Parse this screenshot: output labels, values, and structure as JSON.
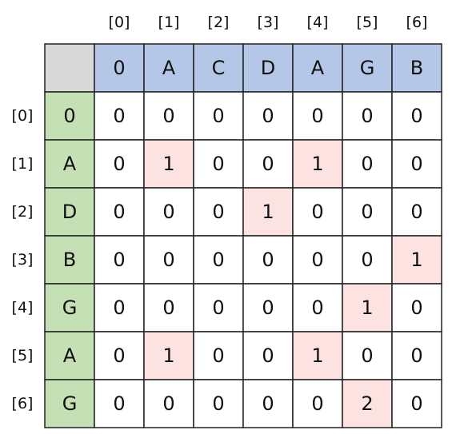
{
  "column_indices": [
    "[0]",
    "[1]",
    "[2]",
    "[3]",
    "[4]",
    "[5]",
    "[6]"
  ],
  "row_indices": [
    "[0]",
    "[1]",
    "[2]",
    "[3]",
    "[4]",
    "[5]",
    "[6]"
  ],
  "column_headers": [
    "0",
    "A",
    "C",
    "D",
    "A",
    "G",
    "B"
  ],
  "row_headers": [
    "0",
    "A",
    "D",
    "B",
    "G",
    "A",
    "G"
  ],
  "table": {
    "rows": [
      [
        0,
        0,
        0,
        0,
        0,
        0,
        0
      ],
      [
        0,
        1,
        0,
        0,
        1,
        0,
        0
      ],
      [
        0,
        0,
        0,
        1,
        0,
        0,
        0
      ],
      [
        0,
        0,
        0,
        0,
        0,
        0,
        1
      ],
      [
        0,
        0,
        0,
        0,
        0,
        1,
        0
      ],
      [
        0,
        1,
        0,
        0,
        1,
        0,
        0
      ],
      [
        0,
        0,
        0,
        0,
        0,
        2,
        0
      ]
    ]
  }
}
